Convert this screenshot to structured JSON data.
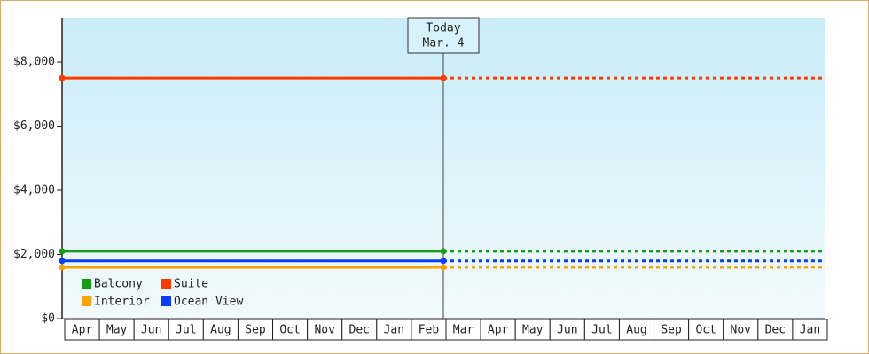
{
  "chart_data": {
    "type": "line",
    "annotation": {
      "label": "Today",
      "date": "Mar. 4"
    },
    "categories": [
      "Apr",
      "May",
      "Jun",
      "Jul",
      "Aug",
      "Sep",
      "Oct",
      "Nov",
      "Dec",
      "Jan",
      "Feb",
      "Mar",
      "Apr",
      "May",
      "Jun",
      "Jul",
      "Aug",
      "Sep",
      "Oct",
      "Nov",
      "Dec",
      "Jan"
    ],
    "projected": [
      false,
      false,
      false,
      false,
      false,
      false,
      false,
      false,
      false,
      false,
      false,
      true,
      true,
      true,
      true,
      true,
      true,
      true,
      true,
      true,
      true,
      true
    ],
    "series": [
      {
        "name": "Balcony",
        "color": "#169c16",
        "values": [
          2100,
          2100,
          2100,
          2100,
          2100,
          2100,
          2100,
          2100,
          2100,
          2100,
          2100,
          2100,
          2100,
          2100,
          2100,
          2100,
          2100,
          2100,
          2100,
          2100,
          2100,
          2100
        ]
      },
      {
        "name": "Suite",
        "color": "#ff3a00",
        "values": [
          7500,
          7500,
          7500,
          7500,
          7500,
          7500,
          7500,
          7500,
          7500,
          7500,
          7500,
          7500,
          7500,
          7500,
          7500,
          7500,
          7500,
          7500,
          7500,
          7500,
          7500,
          7500
        ]
      },
      {
        "name": "Interior",
        "color": "#ffa200",
        "values": [
          1600,
          1600,
          1600,
          1600,
          1600,
          1600,
          1600,
          1600,
          1600,
          1600,
          1600,
          1600,
          1600,
          1600,
          1600,
          1600,
          1600,
          1600,
          1600,
          1600,
          1600,
          1600
        ]
      },
      {
        "name": "Ocean View",
        "color": "#0a3cff",
        "values": [
          1800,
          1800,
          1800,
          1800,
          1800,
          1800,
          1800,
          1800,
          1800,
          1800,
          1800,
          1800,
          1800,
          1800,
          1800,
          1800,
          1800,
          1800,
          1800,
          1800,
          1800,
          1800
        ]
      }
    ],
    "ylim": [
      0,
      9380
    ],
    "yticks": [
      {
        "value": 0,
        "label": "$0"
      },
      {
        "value": 2000,
        "label": "$2,000"
      },
      {
        "value": 4000,
        "label": "$4,000"
      },
      {
        "value": 6000,
        "label": "$6,000"
      },
      {
        "value": 8000,
        "label": "$8,000"
      }
    ],
    "legend": "lower-left"
  }
}
